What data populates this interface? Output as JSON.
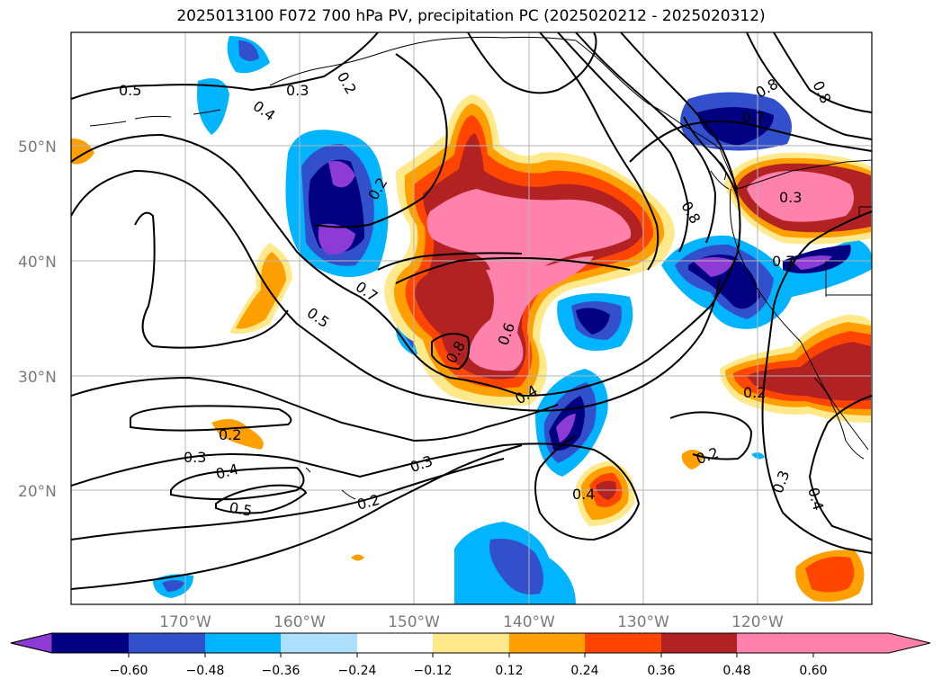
{
  "title": "2025013100 F072 700 hPa PV, precipitation PC (2025020212 - 2025020312)",
  "axes": {
    "lat_ticks": [
      "50°N",
      "40°N",
      "30°N",
      "20°N"
    ],
    "lon_ticks": [
      "170°W",
      "160°W",
      "150°W",
      "140°W",
      "130°W",
      "120°W"
    ]
  },
  "contour_labels": [
    "0.5",
    "0.3",
    "0.2",
    "0.4",
    "0.2",
    "0.5",
    "0.7",
    "0.8",
    "0.6",
    "0.4",
    "0.8",
    "0.8",
    "0.7",
    "0.3",
    "0.7",
    "0.8",
    "0.2",
    "0.2",
    "0.3",
    "0.4",
    "0.5",
    "0.3",
    "0.2",
    "0.4",
    "0.2",
    "0.3",
    "0.4"
  ],
  "colorbar": {
    "ticks": [
      "−0.60",
      "−0.48",
      "−0.36",
      "−0.24",
      "−0.12",
      "0.12",
      "0.24",
      "0.36",
      "0.48",
      "0.60"
    ],
    "colors": [
      "#8e3ad6",
      "#000080",
      "#3350cc",
      "#00b4ff",
      "#ade0ff",
      "#ffffff",
      "#ffe98a",
      "#ffa000",
      "#ff4500",
      "#b22222",
      "#ff82ac"
    ]
  }
}
